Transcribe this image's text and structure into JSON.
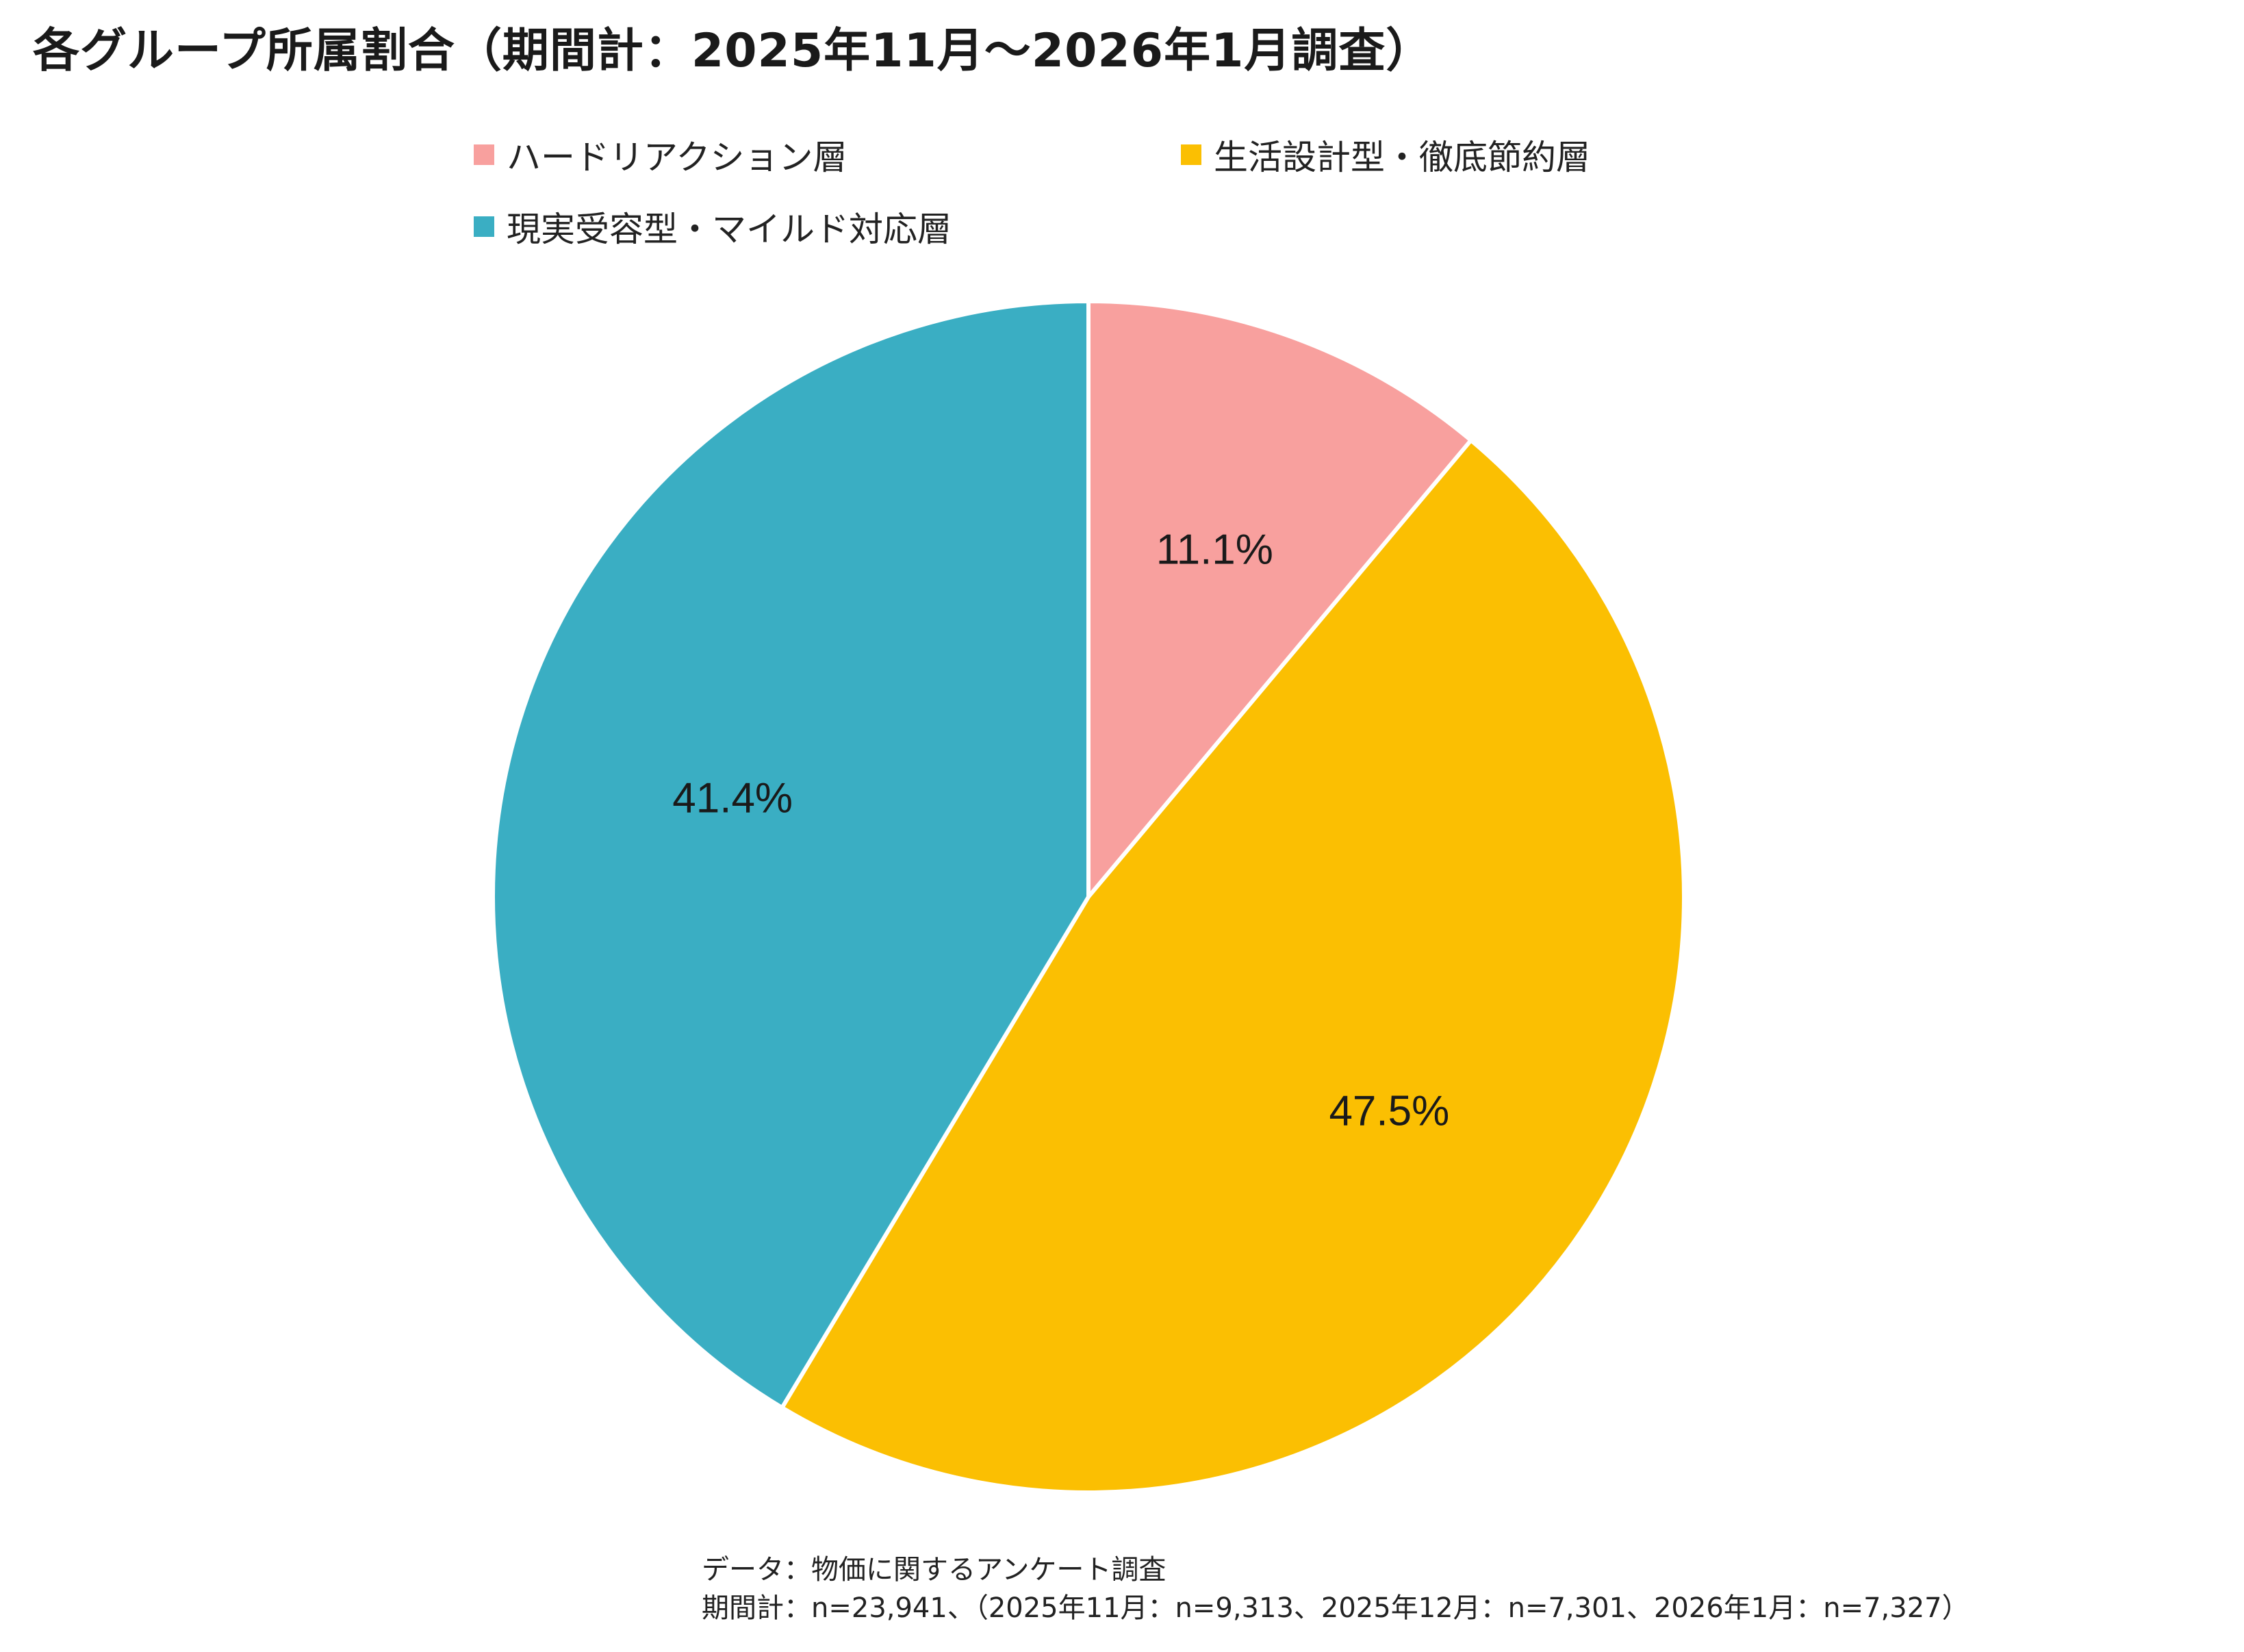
{
  "chart_data": {
    "type": "pie",
    "title": "各グループ所属割合（期間計：2025年11月～2026年1月調査）",
    "categories": [
      "ハードリアクション層",
      "生活設計型・徹底節約層",
      "現実受容型・マイルド対応層"
    ],
    "values": [
      11.1,
      47.5,
      41.4
    ],
    "data_labels": [
      "11.1%",
      "47.5%",
      "41.4%"
    ],
    "colors": [
      "#f8a09e",
      "#fbbf02",
      "#3aaec3"
    ],
    "start_angle_deg": 0,
    "direction": "clockwise",
    "legend": "top"
  },
  "source": {
    "line1": "データ：物価に関するアンケート調査",
    "line2": "期間計：n=23,941、（2025年11月：n=9,313、2025年12月：n=7,301、2026年1月：n=7,327）"
  }
}
